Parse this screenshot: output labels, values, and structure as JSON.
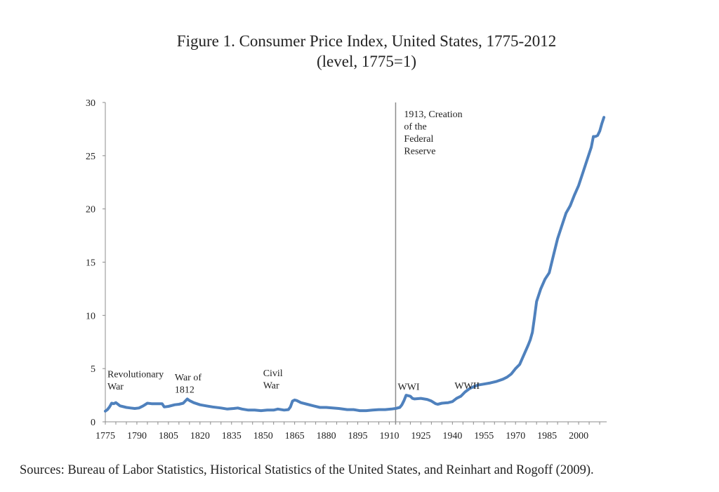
{
  "chart_data": {
    "type": "line",
    "title": "Figure 1. Consumer Price Index, United States, 1775-2012",
    "subtitle": "(level, 1775=1)",
    "xlabel": "",
    "ylabel": "",
    "xlim": [
      1775,
      2012
    ],
    "ylim": [
      0,
      30
    ],
    "x_ticks": [
      1775,
      1790,
      1805,
      1820,
      1835,
      1850,
      1865,
      1880,
      1895,
      1910,
      1925,
      1940,
      1955,
      1970,
      1985,
      2000
    ],
    "y_ticks": [
      0,
      5,
      10,
      15,
      20,
      25,
      30
    ],
    "grid": false,
    "legend": "none",
    "series": [
      {
        "name": "CPI level (1775=1)",
        "color": "#4f81bd",
        "x": [
          1775,
          1776,
          1777,
          1778,
          1779,
          1780,
          1781,
          1782,
          1783,
          1785,
          1787,
          1789,
          1791,
          1793,
          1795,
          1797,
          1800,
          1802,
          1803,
          1805,
          1808,
          1810,
          1812,
          1814,
          1815,
          1817,
          1820,
          1823,
          1826,
          1830,
          1833,
          1836,
          1838,
          1840,
          1843,
          1846,
          1849,
          1852,
          1855,
          1857,
          1860,
          1862,
          1863,
          1864,
          1865,
          1866,
          1868,
          1871,
          1874,
          1877,
          1880,
          1883,
          1886,
          1890,
          1893,
          1896,
          1899,
          1902,
          1905,
          1908,
          1911,
          1913,
          1915,
          1916,
          1917,
          1918,
          1920,
          1921,
          1922,
          1925,
          1928,
          1930,
          1932,
          1933,
          1935,
          1938,
          1940,
          1942,
          1944,
          1946,
          1948,
          1950,
          1952,
          1955,
          1958,
          1961,
          1964,
          1966,
          1968,
          1970,
          1972,
          1974,
          1976,
          1977,
          1978,
          1979,
          1980,
          1982,
          1984,
          1986,
          1988,
          1990,
          1992,
          1994,
          1996,
          1998,
          2000,
          2002,
          2004,
          2006,
          2007,
          2008,
          2009,
          2010,
          2011,
          2012
        ],
        "y": [
          1.0,
          1.15,
          1.4,
          1.75,
          1.7,
          1.8,
          1.65,
          1.5,
          1.45,
          1.35,
          1.3,
          1.25,
          1.3,
          1.5,
          1.75,
          1.7,
          1.7,
          1.7,
          1.4,
          1.45,
          1.6,
          1.65,
          1.75,
          2.15,
          2.0,
          1.8,
          1.6,
          1.5,
          1.4,
          1.3,
          1.2,
          1.25,
          1.3,
          1.2,
          1.1,
          1.1,
          1.05,
          1.1,
          1.1,
          1.2,
          1.1,
          1.15,
          1.4,
          1.95,
          2.05,
          2.0,
          1.8,
          1.65,
          1.5,
          1.35,
          1.35,
          1.3,
          1.25,
          1.15,
          1.15,
          1.05,
          1.05,
          1.1,
          1.15,
          1.15,
          1.2,
          1.25,
          1.35,
          1.6,
          2.0,
          2.5,
          2.4,
          2.2,
          2.15,
          2.2,
          2.1,
          1.95,
          1.7,
          1.65,
          1.75,
          1.8,
          1.9,
          2.2,
          2.4,
          2.8,
          3.1,
          3.3,
          3.45,
          3.55,
          3.65,
          3.8,
          4.0,
          4.2,
          4.5,
          5.0,
          5.4,
          6.3,
          7.2,
          7.7,
          8.4,
          9.8,
          11.3,
          12.5,
          13.4,
          14.0,
          15.6,
          17.2,
          18.4,
          19.6,
          20.3,
          21.3,
          22.2,
          23.4,
          24.6,
          25.8,
          26.8,
          26.8,
          26.9,
          27.3,
          28.0,
          28.6
        ]
      }
    ],
    "annotations": [
      {
        "id": "revolutionary-war",
        "lines": [
          "Revolutionary",
          "War"
        ],
        "x": 1776,
        "y": 4.2
      },
      {
        "id": "war-of-1812",
        "lines": [
          "War of",
          "1812"
        ],
        "x": 1808,
        "y": 3.9
      },
      {
        "id": "civil-war",
        "lines": [
          "Civil",
          "War"
        ],
        "x": 1850,
        "y": 4.3
      },
      {
        "id": "fed-reserve",
        "lines": [
          "1913, Creation",
          "of the",
          "Federal",
          "Reserve"
        ],
        "x": 1917,
        "y": 28.6
      },
      {
        "id": "wwi",
        "lines": [
          "WWI"
        ],
        "x": 1914,
        "y": 3.0
      },
      {
        "id": "wwii",
        "lines": [
          "WWII"
        ],
        "x": 1941,
        "y": 3.1
      }
    ],
    "vertical_lines": [
      {
        "x": 1913,
        "label": "1913, Creation of the Federal Reserve"
      }
    ]
  },
  "footer": {
    "source": "Sources: Bureau of Labor Statistics, Historical Statistics of the United States, and Reinhart and Rogoff (2009)."
  }
}
